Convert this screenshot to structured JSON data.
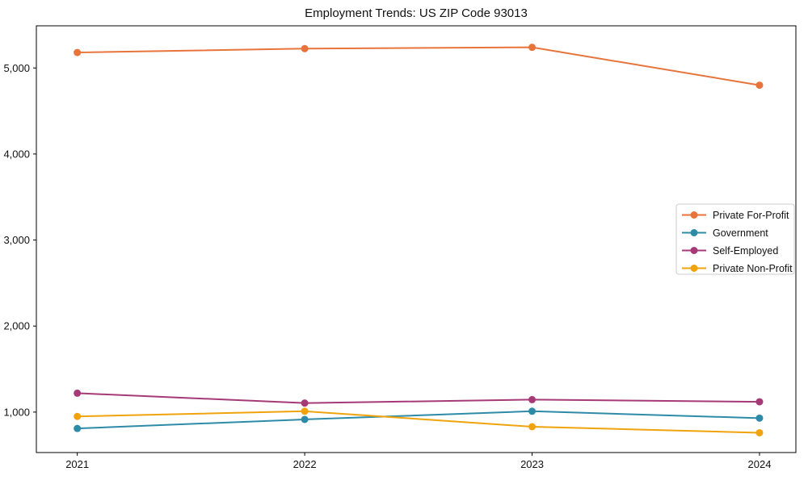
{
  "title": "Employment Trends: US ZIP Code 93013",
  "chart_data": {
    "type": "line",
    "title": "Employment Trends: US ZIP Code 93013",
    "xlabel": "",
    "ylabel": "",
    "x": [
      2021,
      2022,
      2023,
      2024
    ],
    "xtick_labels": [
      "2021",
      "2022",
      "2023",
      "2024"
    ],
    "yticks": [
      1000,
      2000,
      3000,
      4000,
      5000
    ],
    "ytick_labels": [
      "1,000",
      "2,000",
      "3,000",
      "4,000",
      "5,000"
    ],
    "xlim": [
      2020.82,
      2024.16
    ],
    "ylim": [
      530,
      5490
    ],
    "grid": false,
    "legend_position": "center right",
    "series": [
      {
        "name": "Private For-Profit",
        "color": "#E8743B",
        "values": [
          5180,
          5225,
          5240,
          4800
        ]
      },
      {
        "name": "Government",
        "color": "#2E8BA8",
        "values": [
          810,
          915,
          1010,
          930
        ]
      },
      {
        "name": "Self-Employed",
        "color": "#A63A77",
        "values": [
          1220,
          1105,
          1145,
          1120
        ]
      },
      {
        "name": "Private Non-Profit",
        "color": "#F0A30C",
        "values": [
          950,
          1010,
          830,
          760
        ]
      }
    ],
    "axis_color": "#000000",
    "tick_label_color": "#111111",
    "legend_border_color": "#cccccc",
    "legend_background": "#ffffff"
  }
}
